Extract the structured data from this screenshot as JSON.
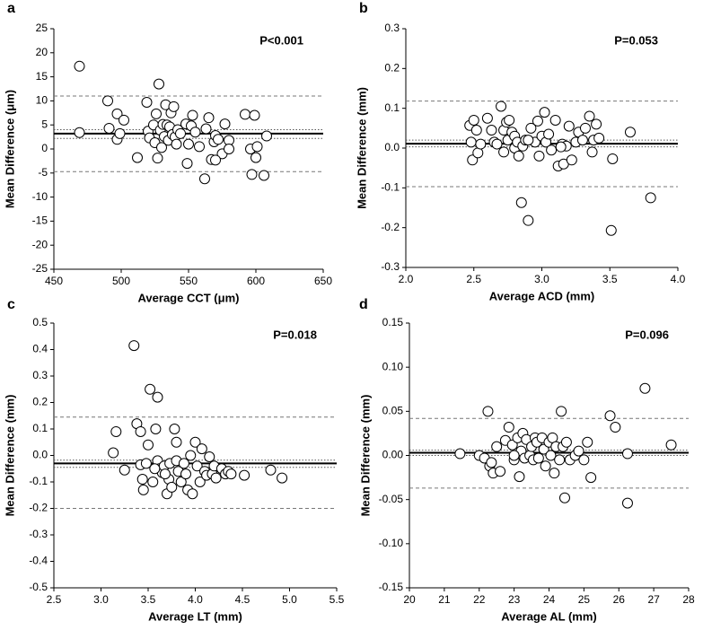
{
  "chart_data": [
    {
      "type": "scatter",
      "panel": "a",
      "annotation": "P<0.001",
      "x_label": "Average CCT (μm)",
      "y_label": "Mean Difference (μm)",
      "xlim": [
        450,
        650
      ],
      "xticks": [
        450,
        500,
        550,
        600,
        650
      ],
      "ylim": [
        -25,
        25
      ],
      "yticks": [
        -25,
        -20,
        -15,
        -10,
        -5,
        0,
        5,
        10,
        15,
        20,
        25
      ],
      "hlines": [
        {
          "value": 11.0,
          "style": "dashed",
          "color": "#777777"
        },
        {
          "value": 4.0,
          "style": "dotted",
          "color": "#555555"
        },
        {
          "value": 3.2,
          "style": "solid",
          "color": "#000000"
        },
        {
          "value": 2.2,
          "style": "dotted",
          "color": "#555555"
        },
        {
          "value": -4.7,
          "style": "dashed",
          "color": "#777777"
        }
      ],
      "x": [
        469,
        469,
        490,
        491,
        497,
        497,
        499,
        502,
        512,
        519,
        520,
        521,
        524,
        525,
        526,
        527,
        528,
        529,
        530,
        531,
        532,
        533,
        534,
        535,
        536,
        537,
        538,
        539,
        540,
        541,
        542,
        544,
        548,
        549,
        550,
        552,
        553,
        555,
        558,
        562,
        563,
        565,
        567,
        569,
        570,
        572,
        575,
        577,
        580,
        580,
        592,
        596,
        597,
        599,
        600,
        601,
        606,
        608,
        570
      ],
      "values": [
        17.2,
        3.4,
        10.0,
        4.3,
        7.3,
        2.0,
        3.2,
        6.0,
        -1.8,
        9.7,
        3.7,
        2.3,
        5.0,
        1.3,
        7.3,
        -1.9,
        13.5,
        3.9,
        0.3,
        5.1,
        2.6,
        9.2,
        5.0,
        1.8,
        4.6,
        7.5,
        3.0,
        8.8,
        2.5,
        1.0,
        4.0,
        3.2,
        5.2,
        -3.0,
        1.0,
        4.8,
        7.0,
        3.5,
        0.5,
        -6.2,
        4.2,
        6.5,
        -2.2,
        1.5,
        2.8,
        2.0,
        -1.0,
        5.2,
        1.8,
        0.0,
        7.2,
        0.0,
        -5.3,
        7.0,
        -1.8,
        0.5,
        -5.5,
        2.7,
        -2.3
      ]
    },
    {
      "type": "scatter",
      "panel": "b",
      "annotation": "P=0.053",
      "x_label": "Average ACD (mm)",
      "y_label": "Mean Difference (mm)",
      "xlim": [
        2.0,
        4.0
      ],
      "xticks": [
        {
          "value": 2,
          "label": "2.0"
        },
        2.5,
        {
          "value": 3,
          "label": "3.0"
        },
        3.5,
        {
          "value": 4,
          "label": "4.0"
        }
      ],
      "ylim": [
        -0.3,
        0.3
      ],
      "yticks": [
        -0.3,
        -0.2,
        -0.1,
        {
          "value": 0,
          "label": "0.0"
        },
        0.1,
        0.2,
        0.3
      ],
      "hlines": [
        {
          "value": 0.118,
          "style": "dashed",
          "color": "#777777"
        },
        {
          "value": 0.02,
          "style": "dotted",
          "color": "#555555"
        },
        {
          "value": 0.011,
          "style": "solid",
          "color": "#000000"
        },
        {
          "value": 0.003,
          "style": "dotted",
          "color": "#555555"
        },
        {
          "value": -0.097,
          "style": "dashed",
          "color": "#777777"
        }
      ],
      "x": [
        2.47,
        2.48,
        2.49,
        2.5,
        2.52,
        2.53,
        2.55,
        2.6,
        2.63,
        2.65,
        2.67,
        2.7,
        2.72,
        2.72,
        2.74,
        2.75,
        2.76,
        2.78,
        2.8,
        2.8,
        2.82,
        2.83,
        2.85,
        2.86,
        2.88,
        2.9,
        2.92,
        2.95,
        2.97,
        2.98,
        3.0,
        3.02,
        3.03,
        3.05,
        3.07,
        3.1,
        3.12,
        3.15,
        3.16,
        3.18,
        3.2,
        3.22,
        3.25,
        3.27,
        3.3,
        3.32,
        3.35,
        3.37,
        3.38,
        3.4,
        3.42,
        3.52,
        3.51,
        3.65,
        3.8,
        3.14,
        2.9
      ],
      "values": [
        0.057,
        0.015,
        -0.03,
        0.07,
        0.045,
        -0.012,
        0.01,
        0.075,
        0.045,
        0.015,
        0.01,
        0.105,
        0.045,
        -0.01,
        0.065,
        0.02,
        0.07,
        0.04,
        0.03,
        0.0,
        0.015,
        -0.02,
        -0.137,
        0.005,
        0.02,
        -0.182,
        0.05,
        0.015,
        0.068,
        -0.02,
        0.03,
        0.09,
        0.015,
        0.035,
        -0.005,
        0.07,
        -0.045,
        0.01,
        -0.04,
        0.005,
        0.055,
        -0.03,
        0.015,
        0.04,
        0.02,
        0.05,
        0.08,
        -0.01,
        0.02,
        0.06,
        0.025,
        -0.027,
        -0.207,
        0.04,
        -0.125,
        0.003,
        0.02
      ]
    },
    {
      "type": "scatter",
      "panel": "c",
      "annotation": "P=0.018",
      "x_label": "Average LT (mm)",
      "y_label": "Mean Difference (mm)",
      "xlim": [
        2.5,
        5.5
      ],
      "xticks": [
        2.5,
        {
          "value": 3,
          "label": "3.0"
        },
        3.5,
        {
          "value": 4,
          "label": "4.0"
        },
        4.5,
        {
          "value": 5,
          "label": "5.0"
        },
        5.5
      ],
      "ylim": [
        -0.5,
        0.5
      ],
      "yticks": [
        -0.5,
        -0.4,
        -0.3,
        -0.2,
        -0.1,
        {
          "value": 0,
          "label": "0.0"
        },
        0.1,
        0.2,
        0.3,
        0.4,
        0.5
      ],
      "hlines": [
        {
          "value": 0.145,
          "style": "dashed",
          "color": "#777777"
        },
        {
          "value": -0.018,
          "style": "dotted",
          "color": "#555555"
        },
        {
          "value": -0.03,
          "style": "solid",
          "color": "#000000"
        },
        {
          "value": -0.045,
          "style": "dotted",
          "color": "#555555"
        },
        {
          "value": -0.2,
          "style": "dashed",
          "color": "#777777"
        }
      ],
      "x": [
        3.13,
        3.16,
        3.25,
        3.35,
        3.38,
        3.42,
        3.42,
        3.44,
        3.45,
        3.48,
        3.5,
        3.52,
        3.55,
        3.58,
        3.6,
        3.6,
        3.62,
        3.65,
        3.67,
        3.7,
        3.72,
        3.73,
        3.75,
        3.78,
        3.8,
        3.8,
        3.82,
        3.85,
        3.88,
        3.9,
        3.92,
        3.95,
        3.97,
        4.0,
        4.02,
        4.05,
        4.07,
        4.1,
        4.12,
        4.15,
        4.18,
        4.2,
        4.22,
        4.28,
        4.32,
        4.35,
        4.38,
        4.52,
        4.8,
        4.92,
        3.68,
        3.57
      ],
      "values": [
        0.01,
        0.09,
        -0.055,
        0.415,
        0.12,
        0.09,
        -0.035,
        -0.09,
        -0.13,
        -0.03,
        0.04,
        0.25,
        -0.1,
        0.1,
        0.22,
        -0.02,
        -0.05,
        -0.065,
        -0.04,
        -0.145,
        -0.09,
        -0.03,
        -0.12,
        0.1,
        0.05,
        -0.02,
        -0.06,
        -0.1,
        -0.03,
        -0.07,
        -0.13,
        0.0,
        -0.145,
        0.05,
        -0.04,
        -0.1,
        0.025,
        -0.06,
        -0.075,
        -0.005,
        -0.07,
        -0.04,
        -0.085,
        -0.05,
        -0.07,
        -0.06,
        -0.07,
        -0.075,
        -0.055,
        -0.085,
        -0.07,
        -0.05
      ]
    },
    {
      "type": "scatter",
      "panel": "d",
      "annotation": "P=0.096",
      "x_label": "Average AL (mm)",
      "y_label": "Mean Difference (mm)",
      "xlim": [
        20,
        28
      ],
      "xticks": [
        20,
        21,
        22,
        23,
        24,
        25,
        26,
        27,
        28
      ],
      "ylim": [
        -0.15,
        0.15
      ],
      "yticks": [
        -0.15,
        {
          "value": -0.1,
          "label": "-0.10"
        },
        -0.05,
        {
          "value": 0,
          "label": "0.00"
        },
        0.05,
        {
          "value": 0.1,
          "label": "0.10"
        },
        0.15
      ],
      "hlines": [
        {
          "value": 0.042,
          "style": "dashed",
          "color": "#777777"
        },
        {
          "value": 0.006,
          "style": "dotted",
          "color": "#555555"
        },
        {
          "value": 0.003,
          "style": "solid",
          "color": "#000000"
        },
        {
          "value": 0.0,
          "style": "dotted",
          "color": "#555555"
        },
        {
          "value": -0.037,
          "style": "dashed",
          "color": "#777777"
        }
      ],
      "x": [
        21.45,
        22.0,
        22.15,
        22.25,
        22.3,
        22.4,
        22.5,
        22.6,
        22.75,
        22.85,
        22.95,
        23.0,
        23.1,
        23.15,
        23.2,
        23.25,
        23.3,
        23.35,
        23.45,
        23.5,
        23.55,
        23.6,
        23.65,
        23.7,
        23.8,
        23.85,
        23.9,
        24.0,
        24.05,
        24.1,
        24.15,
        24.2,
        24.3,
        24.35,
        24.4,
        24.45,
        24.5,
        24.6,
        24.75,
        24.85,
        25.0,
        25.1,
        25.2,
        25.75,
        25.9,
        26.25,
        26.25,
        26.75,
        27.5,
        22.35,
        23.0
      ],
      "values": [
        0.002,
        0.0,
        -0.003,
        0.05,
        -0.012,
        -0.02,
        0.01,
        -0.018,
        0.017,
        0.032,
        0.012,
        -0.005,
        0.02,
        -0.024,
        0.005,
        0.025,
        -0.003,
        0.018,
        0.0,
        0.01,
        -0.005,
        0.02,
        0.015,
        -0.003,
        0.02,
        0.007,
        -0.012,
        0.015,
        0.0,
        0.02,
        -0.02,
        0.01,
        -0.005,
        0.05,
        0.01,
        -0.048,
        0.015,
        -0.005,
        0.0,
        0.005,
        -0.005,
        0.015,
        -0.025,
        0.045,
        0.032,
        0.002,
        -0.054,
        0.076,
        0.012,
        -0.008,
        0.0
      ]
    }
  ]
}
